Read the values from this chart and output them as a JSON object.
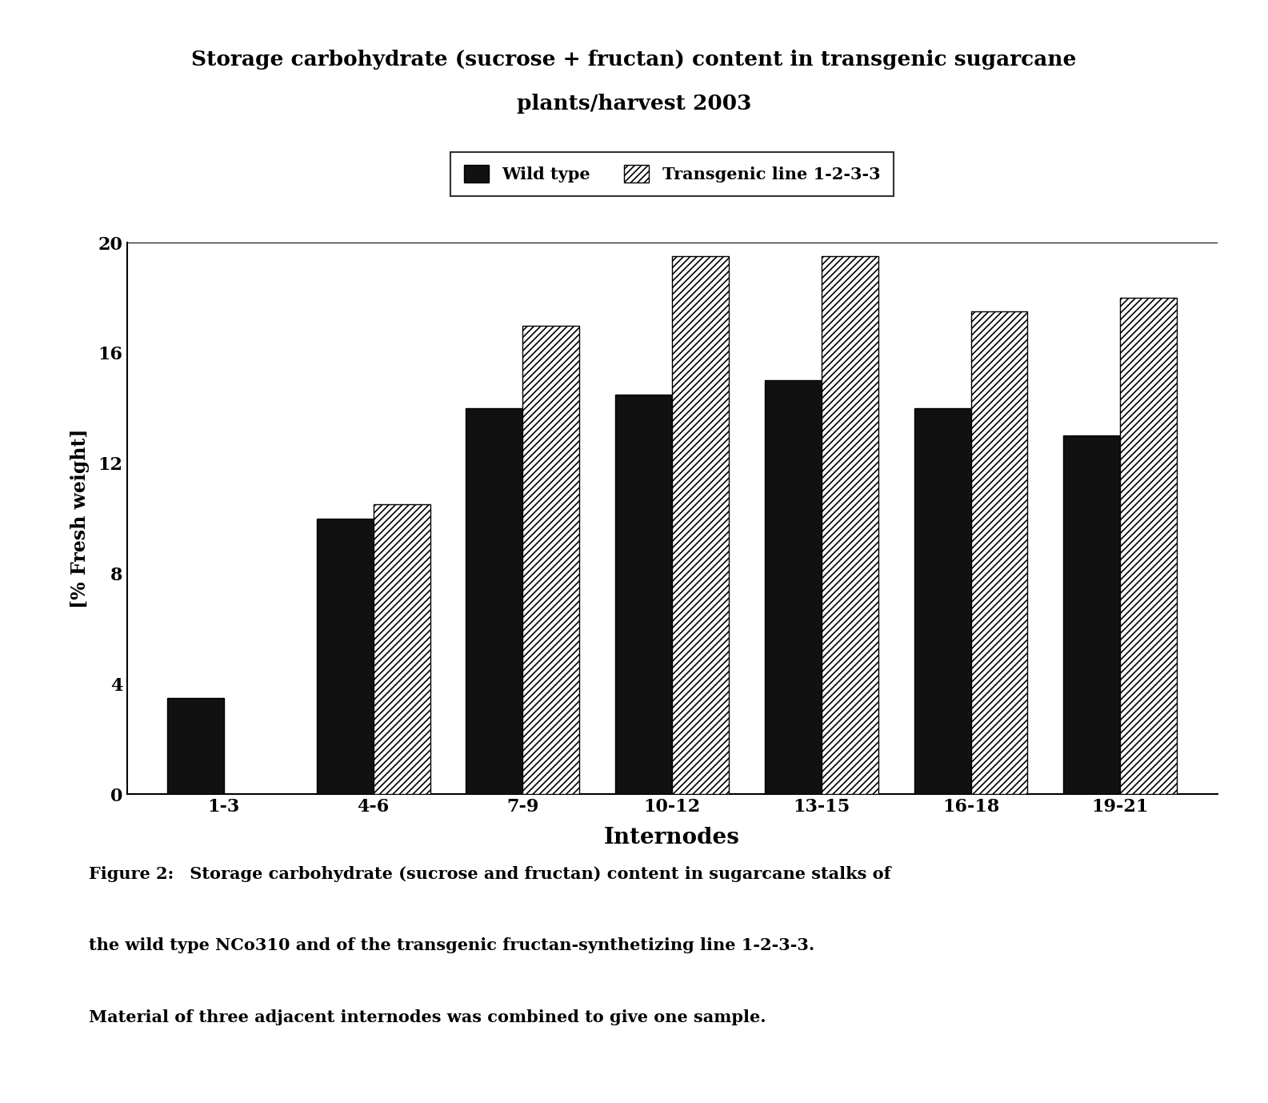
{
  "title_line1": "Storage carbohydrate (sucrose + fructan) content in transgenic sugarcane",
  "title_line2": "plants/harvest 2003",
  "categories": [
    "1-3",
    "4-6",
    "7-9",
    "10-12",
    "13-15",
    "16-18",
    "19-21"
  ],
  "wild_type": [
    3.5,
    10.0,
    14.0,
    14.5,
    15.0,
    14.0,
    13.0
  ],
  "transgenic": [
    0.0,
    10.5,
    17.0,
    19.5,
    19.5,
    17.5,
    18.0
  ],
  "wild_type_color": "#111111",
  "ylabel": "[% Fresh weight]",
  "xlabel": "Internodes",
  "ylim": [
    0,
    20
  ],
  "yticks": [
    0,
    4,
    8,
    12,
    16,
    20
  ],
  "bar_width": 0.38,
  "legend_wild": "Wild type",
  "legend_transgenic": "Transgenic line 1-2-3-3",
  "caption_bold": "Figure 2:",
  "caption_rest1": " Storage carbohydrate (sucrose and fructan) content in sugarcane stalks of",
  "caption_line2": "the wild type NCo310 and of the transgenic fructan-synthetizing line 1-2-3-3.",
  "caption_line3": "Material of three adjacent internodes was combined to give one sample.",
  "background_color": "#ffffff",
  "hatch_transgenic": "////"
}
